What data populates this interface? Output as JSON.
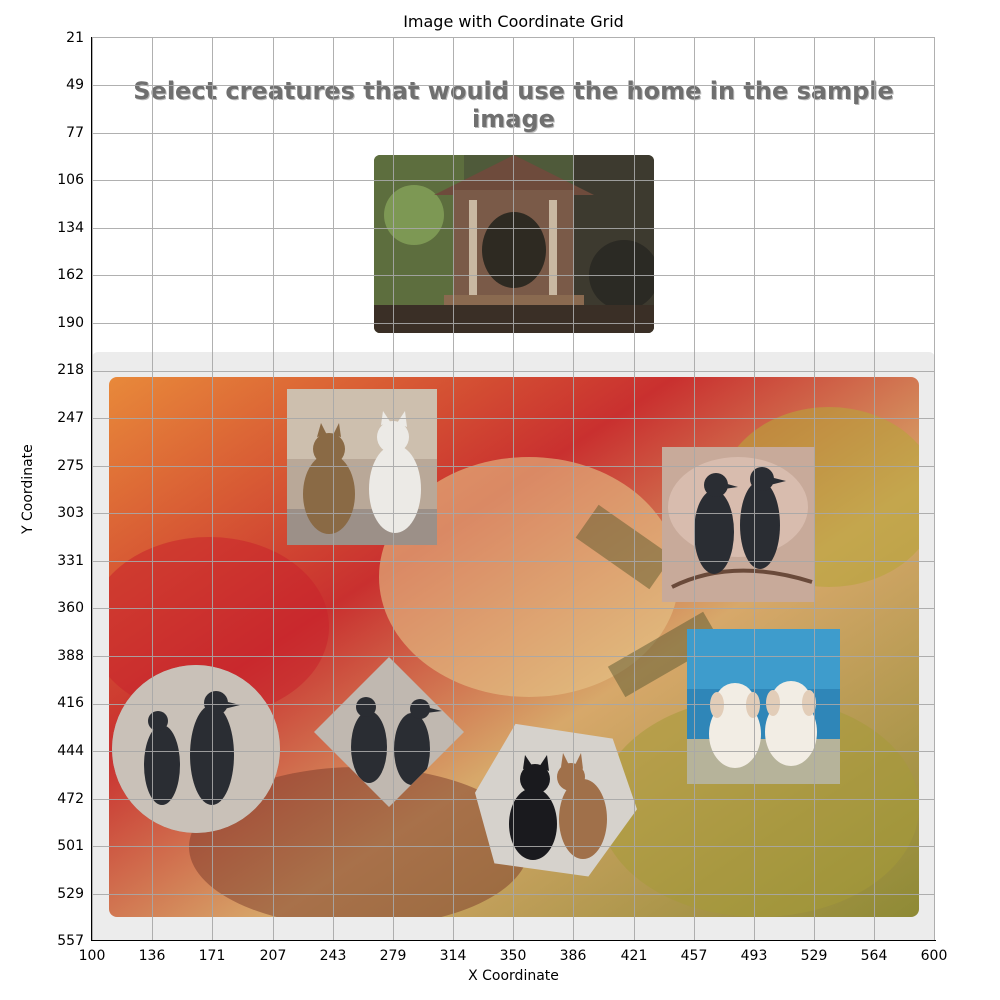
{
  "figure": {
    "title": "Image with Coordinate Grid",
    "xlabel": "X Coordinate",
    "ylabel": "Y Coordinate",
    "x_ticks": [
      "100",
      "136",
      "171",
      "207",
      "243",
      "279",
      "314",
      "350",
      "386",
      "421",
      "457",
      "493",
      "529",
      "564",
      "600"
    ],
    "y_ticks": [
      "21",
      "49",
      "77",
      "106",
      "134",
      "162",
      "190",
      "218",
      "247",
      "275",
      "303",
      "331",
      "360",
      "388",
      "416",
      "444",
      "472",
      "501",
      "529",
      "557"
    ]
  },
  "captcha": {
    "prompt": "Select creatures that would use the home in the sample image",
    "sample_image": "birdhouse-image",
    "options": [
      {
        "id": "cats-pair-1",
        "content": "two cats (tabby and white)"
      },
      {
        "id": "crows-pair-1",
        "content": "two crows on a branch"
      },
      {
        "id": "puppies-pair",
        "content": "two white puppies"
      },
      {
        "id": "crows-pair-2",
        "content": "two crows (circle tile)"
      },
      {
        "id": "crows-pair-3",
        "content": "two crows (diamond tile)"
      },
      {
        "id": "cats-pair-2",
        "content": "black cat and tabby cat (hexagon tile)"
      }
    ]
  },
  "colors": {
    "prompt_text": "#6f6f6f",
    "panel_bg": "#ececec",
    "grid": "#b0b0b0",
    "crow": "#2a2d33",
    "board_warm": "#d0452f",
    "board_olive": "#9a9a3a"
  }
}
